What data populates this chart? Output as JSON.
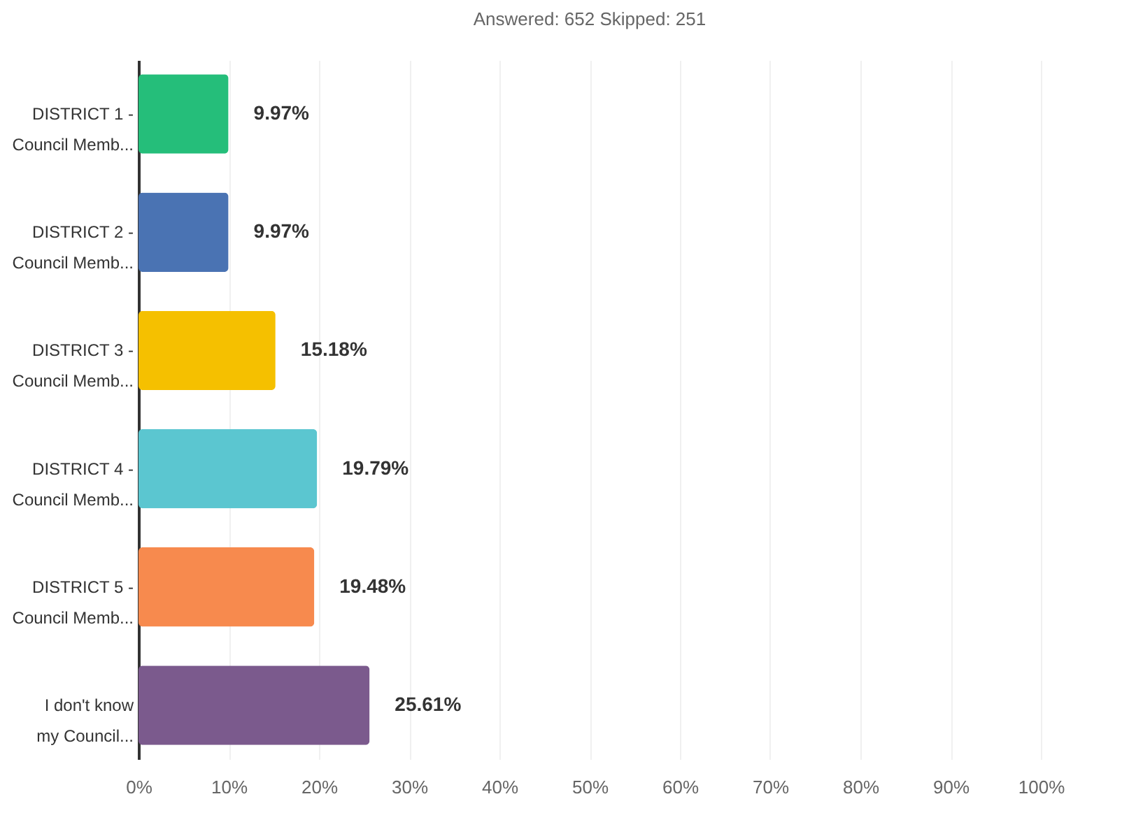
{
  "chart_data": {
    "type": "bar",
    "orientation": "horizontal",
    "title": "Answered: 652    Skipped: 251",
    "categories": [
      "DISTRICT 1 -\nCouncil Memb...",
      "DISTRICT 2 -\nCouncil Memb...",
      "DISTRICT 3 -\nCouncil Memb...",
      "DISTRICT 4 -\nCouncil Memb...",
      "DISTRICT 5 -\nCouncil Memb...",
      "I don't know\nmy Council..."
    ],
    "values": [
      9.97,
      9.97,
      15.18,
      19.79,
      19.48,
      25.61
    ],
    "colors": [
      "#25be7a",
      "#4a73b3",
      "#f5c000",
      "#5bc6d0",
      "#f78a4e",
      "#7b5a8d"
    ],
    "value_labels": [
      "9.97%",
      "9.97%",
      "15.18%",
      "19.79%",
      "19.48%",
      "25.61%"
    ],
    "xlim": [
      0,
      100
    ],
    "xticks": [
      {
        "value": 0,
        "label": "0%"
      },
      {
        "value": 10,
        "label": "10%"
      },
      {
        "value": 20,
        "label": "20%"
      },
      {
        "value": 30,
        "label": "30%"
      },
      {
        "value": 40,
        "label": "40%"
      },
      {
        "value": 50,
        "label": "50%"
      },
      {
        "value": 60,
        "label": "60%"
      },
      {
        "value": 70,
        "label": "70%"
      },
      {
        "value": 80,
        "label": "80%"
      },
      {
        "value": 90,
        "label": "90%"
      },
      {
        "value": 100,
        "label": "100%"
      }
    ],
    "grid": "x"
  }
}
